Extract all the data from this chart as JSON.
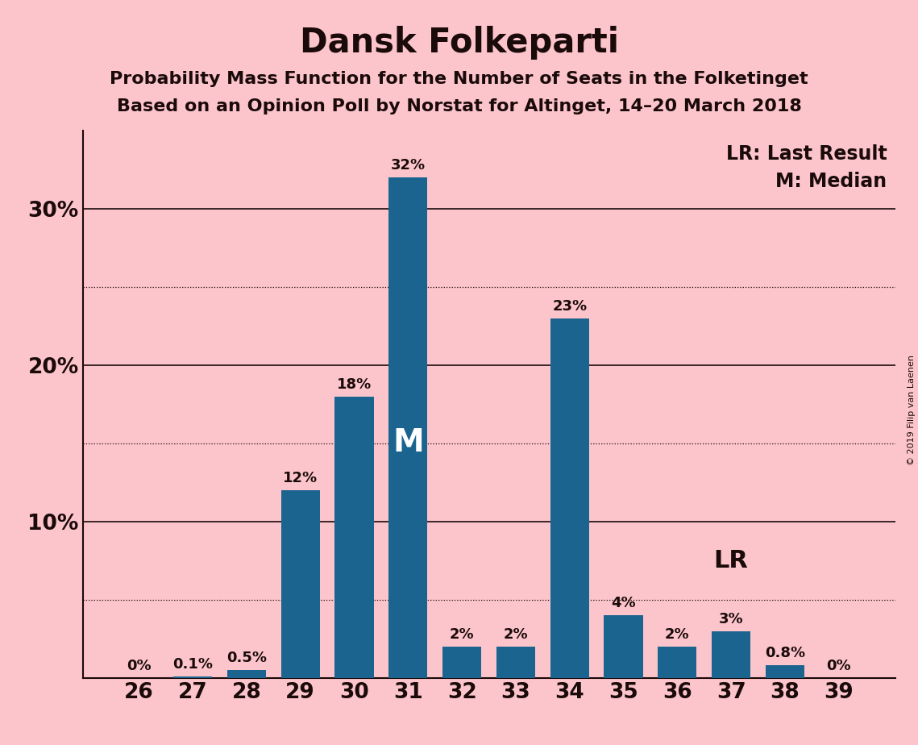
{
  "title": "Dansk Folkeparti",
  "subtitle1": "Probability Mass Function for the Number of Seats in the Folketinget",
  "subtitle2": "Based on an Opinion Poll by Norstat for Altinget, 14–20 March 2018",
  "copyright": "© 2019 Filip van Laenen",
  "seats": [
    26,
    27,
    28,
    29,
    30,
    31,
    32,
    33,
    34,
    35,
    36,
    37,
    38,
    39
  ],
  "probabilities": [
    0.0,
    0.1,
    0.5,
    12.0,
    18.0,
    32.0,
    2.0,
    2.0,
    23.0,
    4.0,
    2.0,
    3.0,
    0.8,
    0.0
  ],
  "labels": [
    "0%",
    "0.1%",
    "0.5%",
    "12%",
    "18%",
    "32%",
    "2%",
    "2%",
    "23%",
    "4%",
    "2%",
    "3%",
    "0.8%",
    "0%"
  ],
  "bar_color": "#1b6490",
  "background_color": "#fcc5cb",
  "median_seat": 31,
  "lr_seat": 37,
  "major_yticks": [
    10,
    20,
    30
  ],
  "dotted_yticks": [
    5,
    15,
    25
  ],
  "ylim_max": 35,
  "title_fontsize": 30,
  "subtitle_fontsize": 16,
  "label_fontsize": 13,
  "tick_fontsize": 19,
  "m_fontsize": 28,
  "lr_fontsize": 22,
  "legend_fontsize": 17,
  "copyright_fontsize": 8,
  "text_color": "#1a0a0a"
}
